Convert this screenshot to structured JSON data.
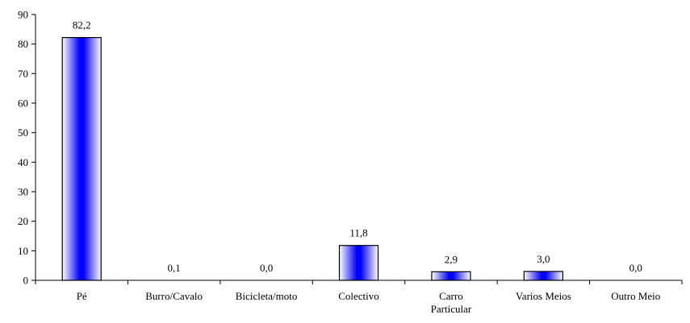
{
  "chart_data": {
    "type": "bar",
    "title": "",
    "xlabel": "",
    "ylabel": "",
    "ylim": [
      0,
      90
    ],
    "yticks": [
      0,
      10,
      20,
      30,
      40,
      50,
      60,
      70,
      80,
      90
    ],
    "ytick_labels": [
      "0",
      "10",
      "20",
      "30",
      "40",
      "50",
      "60",
      "70",
      "80",
      "90"
    ],
    "categories": [
      [
        "Pé"
      ],
      [
        "Burro/Cavalo"
      ],
      [
        "Bicicleta/moto"
      ],
      [
        "Colectivo"
      ],
      [
        "Carro",
        "Particular"
      ],
      [
        "Varios Meios"
      ],
      [
        "Outro Meio"
      ]
    ],
    "values": [
      82.2,
      0.1,
      0.0,
      11.8,
      2.9,
      3.0,
      0.0
    ],
    "data_labels": [
      "82,2",
      "0,1",
      "0,0",
      "11,8",
      "2,9",
      "3,0",
      "0,0"
    ],
    "grid": false,
    "legend": "none",
    "bar_gradient_colors": [
      "#ffffff",
      "#0000ff"
    ]
  }
}
